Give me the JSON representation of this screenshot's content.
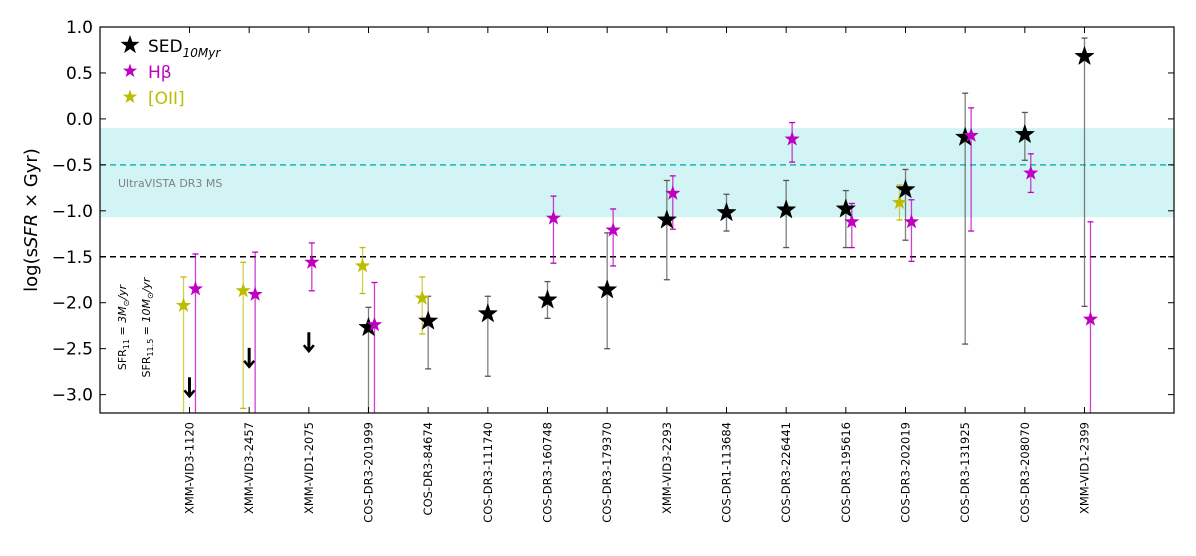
{
  "chart_data": {
    "type": "scatter",
    "ylabel": "log(sSFR × Gyr)",
    "ylim": [
      -3.2,
      1.0
    ],
    "yticks": [
      1.0,
      0.5,
      0.0,
      -0.5,
      -1.0,
      -1.5,
      -2.0,
      -2.5,
      -3.0
    ],
    "ytick_labels": [
      "1.0",
      "0.5",
      "0.0",
      "−0.5",
      "−1.0",
      "−1.5",
      "−2.0",
      "−2.5",
      "−3.0"
    ],
    "xlim": [
      -1.5,
      16.5
    ],
    "grid": false,
    "legend_position": "top-left",
    "categories": [
      "XMM-VID3-1120",
      "XMM-VID3-2457",
      "XMM-VID1-2075",
      "COS-DR3-201999",
      "COS-DR3-84674",
      "COS-DR3-111740",
      "COS-DR3-160748",
      "COS-DR3-179370",
      "XMM-VID3-2293",
      "COS-DR1-113684",
      "COS-DR3-226441",
      "COS-DR3-195616",
      "COS-DR3-202019",
      "COS-DR3-131925",
      "COS-DR3-208070",
      "XMM-VID1-2399"
    ],
    "legend": [
      {
        "key": "sed",
        "label": "SED",
        "subscript": "10Myr",
        "color": "#000000"
      },
      {
        "key": "hb",
        "label": "Hβ",
        "color": "#c000c0"
      },
      {
        "key": "oii",
        "label": "[OII]",
        "color": "#bdbd00"
      }
    ],
    "band": {
      "label": "UltraVISTA DR3 MS",
      "center": -0.5,
      "lower": -1.07,
      "upper": -0.1,
      "color": "#d2f4f4",
      "line_color": "#20b2b2"
    },
    "hlines": [
      {
        "y": -1.5,
        "color": "#000000",
        "style": "dashed"
      }
    ],
    "vertical_labels": [
      "SFR",
      "SFR"
    ],
    "vertical_subscripts": [
      "11",
      "11.5"
    ],
    "vertical_values": [
      "= 3M",
      "= 10M"
    ],
    "vertical_units": [
      "/yr",
      "/yr"
    ],
    "series": [
      {
        "name": "SED10Myr",
        "key": "sed",
        "color": "#000000",
        "points": [
          {
            "x": 3,
            "y": -2.27,
            "lo": -3.3,
            "hi": -2.05
          },
          {
            "x": 4,
            "y": -2.2,
            "lo": -2.72,
            "hi": -1.93
          },
          {
            "x": 5,
            "y": -2.12,
            "lo": -2.8,
            "hi": -1.93
          },
          {
            "x": 6,
            "y": -1.97,
            "lo": -2.17,
            "hi": -1.77
          },
          {
            "x": 7,
            "y": -1.86,
            "lo": -2.5,
            "hi": -1.24
          },
          {
            "x": 8,
            "y": -1.1,
            "lo": -1.75,
            "hi": -0.67
          },
          {
            "x": 9,
            "y": -1.02,
            "lo": -1.22,
            "hi": -0.82
          },
          {
            "x": 10,
            "y": -0.99,
            "lo": -1.4,
            "hi": -0.67
          },
          {
            "x": 11,
            "y": -0.98,
            "lo": -1.4,
            "hi": -0.78
          },
          {
            "x": 12,
            "y": -0.77,
            "lo": -1.32,
            "hi": -0.55
          },
          {
            "x": 13,
            "y": -0.2,
            "lo": -2.45,
            "hi": 0.28
          },
          {
            "x": 14,
            "y": -0.17,
            "lo": -0.45,
            "hi": 0.07
          },
          {
            "x": 15,
            "y": 0.68,
            "lo": -2.04,
            "hi": 0.88
          }
        ]
      },
      {
        "name": "SED10Myr upper limits",
        "key": "sed_limit",
        "color": "#000000",
        "points": [
          {
            "x": 0,
            "y": -2.92
          },
          {
            "x": 1,
            "y": -2.6
          },
          {
            "x": 2,
            "y": -2.43
          }
        ]
      },
      {
        "name": "Hβ",
        "key": "hb",
        "color": "#c000c0",
        "points": [
          {
            "x": 0.1,
            "y": -1.85,
            "lo": -3.3,
            "hi": -1.47
          },
          {
            "x": 1.1,
            "y": -1.91,
            "lo": -3.3,
            "hi": -1.45
          },
          {
            "x": 2.05,
            "y": -1.56,
            "lo": -1.87,
            "hi": -1.35
          },
          {
            "x": 3.1,
            "y": -2.24,
            "lo": -3.3,
            "hi": -1.78
          },
          {
            "x": 6.1,
            "y": -1.08,
            "lo": -1.57,
            "hi": -0.84
          },
          {
            "x": 7.1,
            "y": -1.21,
            "lo": -1.6,
            "hi": -0.98
          },
          {
            "x": 8.1,
            "y": -0.81,
            "lo": -1.2,
            "hi": -0.62
          },
          {
            "x": 10.1,
            "y": -0.22,
            "lo": -0.47,
            "hi": -0.04
          },
          {
            "x": 11.1,
            "y": -1.12,
            "lo": -1.4,
            "hi": -0.92
          },
          {
            "x": 12.1,
            "y": -1.12,
            "lo": -1.55,
            "hi": -0.88
          },
          {
            "x": 13.1,
            "y": -0.18,
            "lo": -1.22,
            "hi": 0.12
          },
          {
            "x": 14.1,
            "y": -0.59,
            "lo": -0.8,
            "hi": -0.38
          },
          {
            "x": 15.1,
            "y": -2.18,
            "lo": -3.3,
            "hi": -1.12
          }
        ]
      },
      {
        "name": "[OII]",
        "key": "oii",
        "color": "#bdbd00",
        "points": [
          {
            "x": -0.1,
            "y": -2.03,
            "lo": -3.3,
            "hi": -1.72
          },
          {
            "x": 0.9,
            "y": -1.87,
            "lo": -3.15,
            "hi": -1.56
          },
          {
            "x": 2.9,
            "y": -1.6,
            "lo": -1.9,
            "hi": -1.4
          },
          {
            "x": 3.9,
            "y": -1.95,
            "lo": -2.34,
            "hi": -1.72
          },
          {
            "x": 11.9,
            "y": -0.91,
            "lo": -1.1,
            "hi": -0.72
          }
        ]
      }
    ]
  }
}
